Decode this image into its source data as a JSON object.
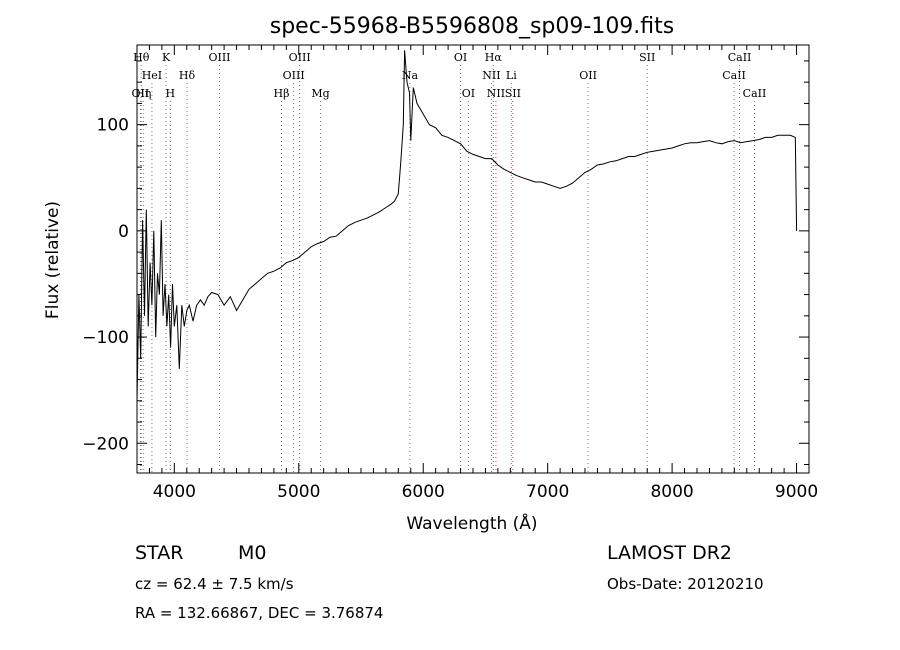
{
  "chart_data": {
    "type": "line",
    "title": "spec-55968-B5596808_sp09-109.fits",
    "xlabel": "Wavelength (Å)",
    "ylabel": "Flux (relative)",
    "xlim": [
      3700,
      9100
    ],
    "ylim": [
      -228,
      175
    ],
    "x_ticks": [
      4000,
      5000,
      6000,
      7000,
      8000,
      9000
    ],
    "y_ticks": [
      -200,
      -100,
      0,
      100
    ],
    "grid": false,
    "series": [
      {
        "x": [
          3700,
          3715,
          3730,
          3745,
          3760,
          3775,
          3790,
          3805,
          3820,
          3835,
          3850,
          3865,
          3880,
          3895,
          3910,
          3925,
          3940,
          3955,
          3970,
          3985,
          4000,
          4020,
          4040,
          4060,
          4080,
          4100,
          4120,
          4150,
          4180,
          4210,
          4240,
          4270,
          4300,
          4350,
          4400,
          4450,
          4500,
          4550,
          4600,
          4650,
          4700,
          4750,
          4800,
          4850,
          4900,
          4950,
          5000,
          5050,
          5100,
          5150,
          5200,
          5250,
          5300,
          5350,
          5400,
          5450,
          5500,
          5550,
          5600,
          5650,
          5700,
          5740,
          5770,
          5800,
          5820,
          5840,
          5850,
          5870,
          5890,
          5900,
          5920,
          5950,
          6000,
          6050,
          6100,
          6150,
          6200,
          6250,
          6300,
          6350,
          6400,
          6450,
          6500,
          6550,
          6600,
          6650,
          6700,
          6750,
          6800,
          6850,
          6900,
          6950,
          7000,
          7050,
          7100,
          7150,
          7200,
          7250,
          7300,
          7350,
          7400,
          7450,
          7500,
          7550,
          7600,
          7650,
          7700,
          7750,
          7800,
          7850,
          7900,
          7950,
          8000,
          8050,
          8100,
          8150,
          8200,
          8250,
          8300,
          8350,
          8400,
          8450,
          8500,
          8550,
          8600,
          8650,
          8700,
          8750,
          8800,
          8850,
          8900,
          8950,
          8990,
          9000
        ],
        "y": [
          -160,
          -60,
          -120,
          10,
          -80,
          20,
          -90,
          -30,
          -70,
          0,
          -100,
          -40,
          -60,
          10,
          -80,
          -50,
          -90,
          -60,
          -110,
          -50,
          -90,
          -70,
          -130,
          -70,
          -90,
          -75,
          -70,
          -85,
          -70,
          -65,
          -70,
          -62,
          -58,
          -60,
          -70,
          -62,
          -75,
          -65,
          -55,
          -50,
          -45,
          -40,
          -38,
          -35,
          -30,
          -28,
          -25,
          -20,
          -15,
          -12,
          -10,
          -6,
          -5,
          0,
          5,
          8,
          10,
          12,
          15,
          18,
          22,
          25,
          28,
          35,
          65,
          100,
          170,
          140,
          130,
          85,
          135,
          120,
          110,
          100,
          97,
          90,
          88,
          85,
          82,
          75,
          72,
          70,
          68,
          68,
          62,
          58,
          55,
          52,
          50,
          48,
          46,
          46,
          44,
          42,
          40,
          42,
          45,
          50,
          55,
          58,
          62,
          63,
          65,
          66,
          68,
          70,
          70,
          72,
          74,
          75,
          76,
          77,
          78,
          80,
          82,
          83,
          83,
          84,
          85,
          83,
          82,
          84,
          85,
          83,
          84,
          85,
          86,
          88,
          88,
          90,
          90,
          90,
          88,
          0
        ]
      }
    ],
    "annotations": [
      {
        "label": "OII",
        "x": 3727,
        "row": 3,
        "color": "#777777"
      },
      {
        "label": "Hθ",
        "x": 3734,
        "row": 1,
        "color": "#777777"
      },
      {
        "label": "Hη",
        "x": 3750,
        "row": 3,
        "color": "#777777"
      },
      {
        "label": "HeI",
        "x": 3820,
        "row": 2,
        "color": "#777777"
      },
      {
        "label": "K",
        "x": 3934,
        "row": 1,
        "color": "#777777"
      },
      {
        "label": "H",
        "x": 3968,
        "row": 3,
        "color": "#777777"
      },
      {
        "label": "Hδ",
        "x": 4102,
        "row": 2,
        "color": "#777777"
      },
      {
        "label": "OIII",
        "x": 4363,
        "row": 1,
        "color": "#777777"
      },
      {
        "label": "Hβ",
        "x": 4861,
        "row": 3,
        "color": "#c04040"
      },
      {
        "label": "OIII",
        "x": 4959,
        "row": 2,
        "color": "#777777"
      },
      {
        "label": "OIII",
        "x": 5007,
        "row": 1,
        "color": "#777777"
      },
      {
        "label": "Mg",
        "x": 5175,
        "row": 3,
        "color": "#777777"
      },
      {
        "label": "Na",
        "x": 5893,
        "row": 2,
        "color": "#777777"
      },
      {
        "label": "OI",
        "x": 6300,
        "row": 1,
        "color": "#777777"
      },
      {
        "label": "OI",
        "x": 6363,
        "row": 3,
        "color": "#777777"
      },
      {
        "label": "NII",
        "x": 6548,
        "row": 2,
        "color": "#c04040"
      },
      {
        "label": "Hα",
        "x": 6563,
        "row": 1,
        "color": "#c04040"
      },
      {
        "label": "NII",
        "x": 6584,
        "row": 3,
        "color": "#c04040"
      },
      {
        "label": "Li",
        "x": 6708,
        "row": 2,
        "color": "#777777"
      },
      {
        "label": "SII",
        "x": 6720,
        "row": 3,
        "color": "#c04040"
      },
      {
        "label": "OII",
        "x": 7325,
        "row": 2,
        "color": "#777777"
      },
      {
        "label": "SII",
        "x": 7800,
        "row": 1,
        "color": "#777777"
      },
      {
        "label": "CaII",
        "x": 8498,
        "row": 2,
        "color": "#777777"
      },
      {
        "label": "CaII",
        "x": 8542,
        "row": 1,
        "color": "#777777"
      },
      {
        "label": "CaII",
        "x": 8662,
        "row": 3,
        "color": "#777777"
      }
    ]
  },
  "info": {
    "object_class": "STAR",
    "subclass": "M0",
    "survey": "LAMOST DR2",
    "redshift": "cz = 62.4 ± 7.5 km/s",
    "obs_date": "Obs-Date: 20120210",
    "coords": "RA = 132.66867, DEC =   3.76874"
  }
}
